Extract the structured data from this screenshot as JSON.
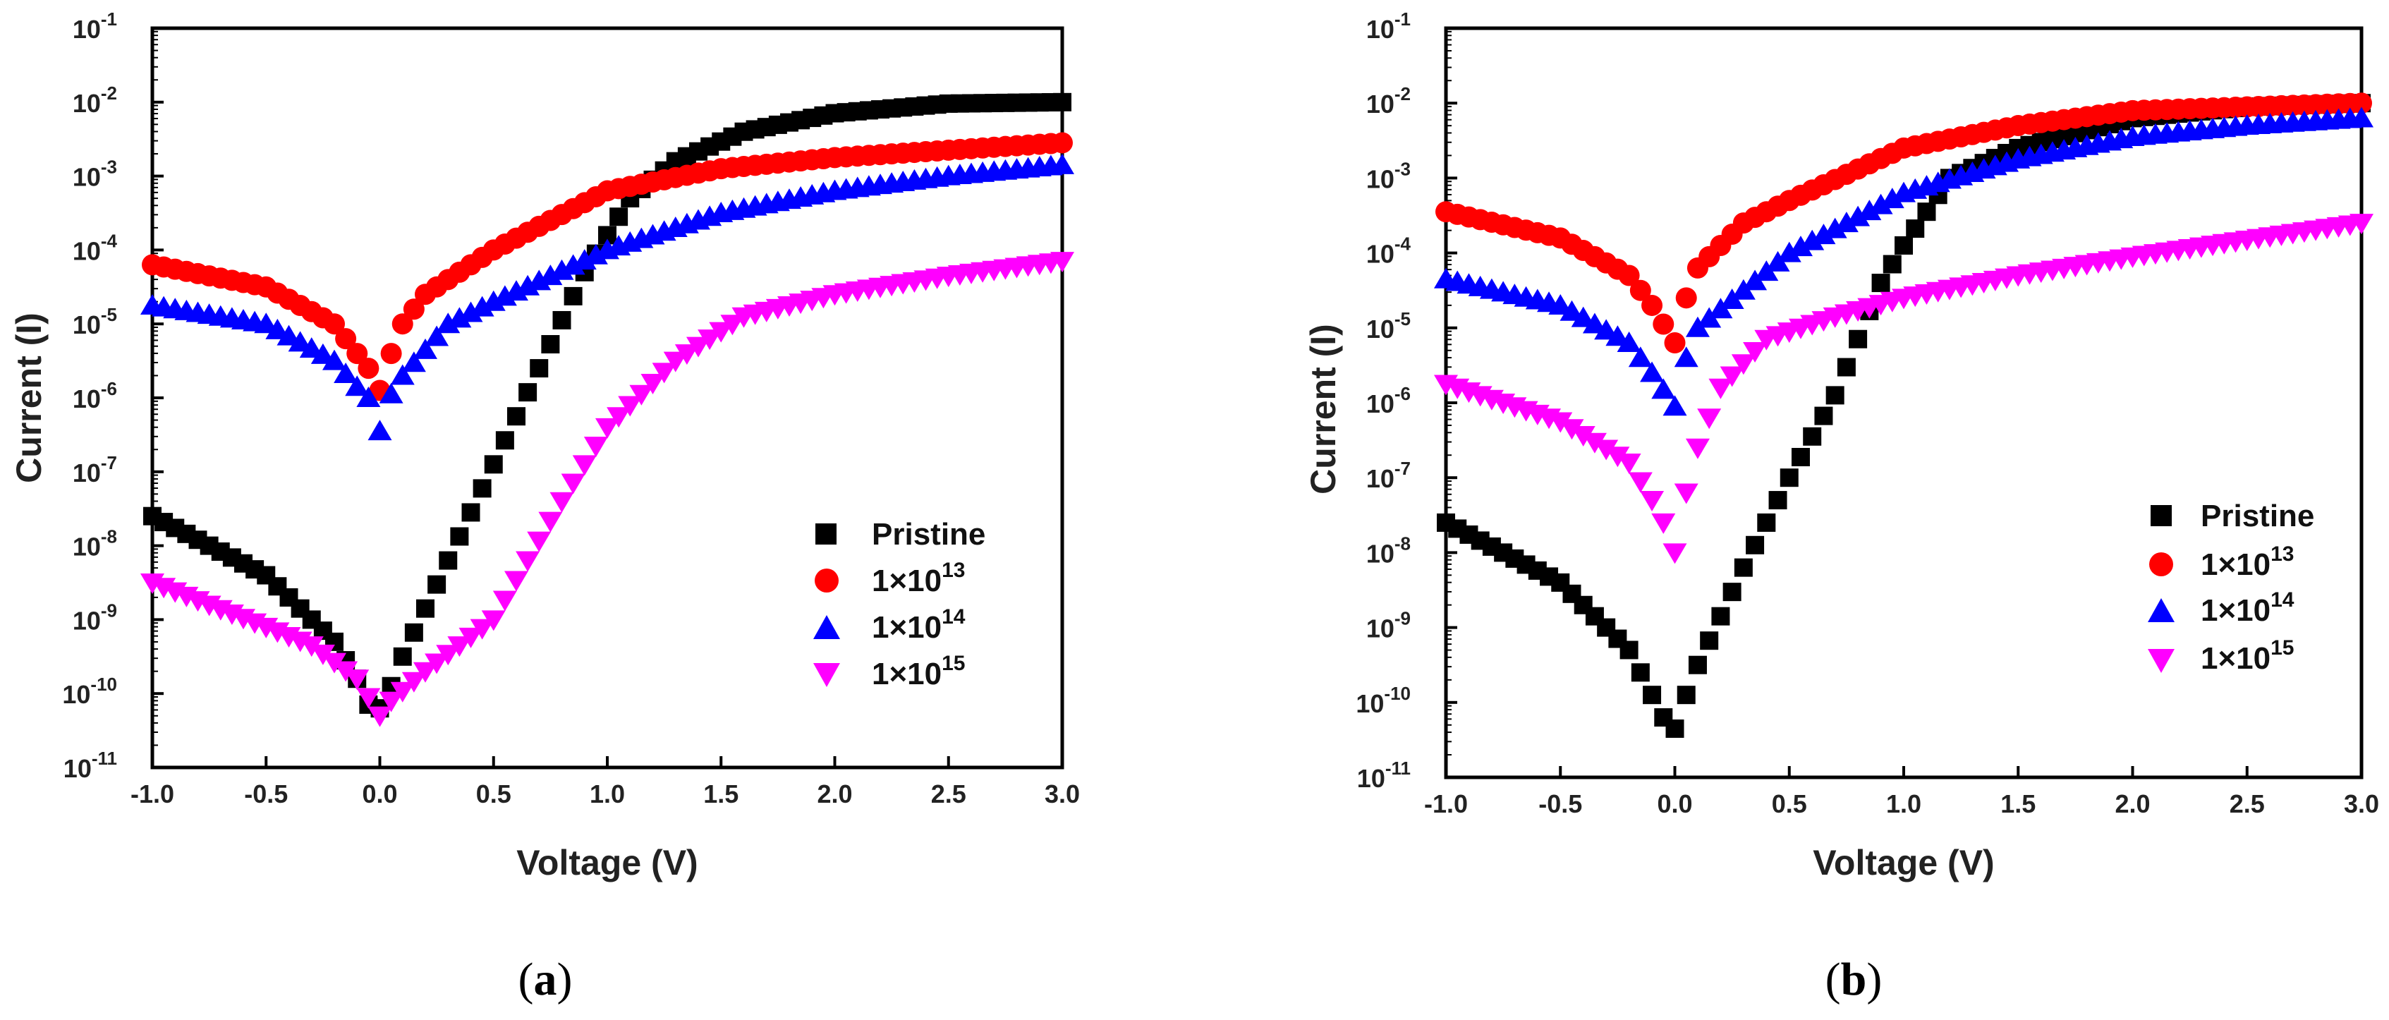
{
  "chart_data": [
    {
      "type": "scatter",
      "panel_label": "a",
      "xlabel": "Voltage (V)",
      "ylabel": "Current (I)",
      "xlim": [
        -1.0,
        3.0
      ],
      "ylim_log10": [
        -11,
        -1
      ],
      "yscale": "log",
      "x_ticks": [
        -1.0,
        -0.5,
        0.0,
        0.5,
        1.0,
        1.5,
        2.0,
        2.5,
        3.0
      ],
      "x_tick_labels": [
        "-1.0",
        "-0.5",
        "0.0",
        "0.5",
        "1.0",
        "1.5",
        "2.0",
        "2.5",
        "3.0"
      ],
      "y_tick_exponents": [
        -1,
        -2,
        -3,
        -4,
        -5,
        -6,
        -7,
        -8,
        -9,
        -10,
        -11
      ],
      "y_tick_base": "10",
      "legend_position": "lower-right",
      "series": [
        {
          "name": "Pristine",
          "marker": "square",
          "color": "#000000",
          "points": [
            [
              -1.0,
              -7.6
            ],
            [
              -0.5,
              -8.4
            ],
            [
              -0.2,
              -9.3
            ],
            [
              -0.1,
              -9.8
            ],
            [
              -0.05,
              -10.15
            ],
            [
              0.0,
              -10.2
            ],
            [
              0.05,
              -9.9
            ],
            [
              0.1,
              -9.5
            ],
            [
              0.3,
              -8.2
            ],
            [
              0.5,
              -6.9
            ],
            [
              0.7,
              -5.6
            ],
            [
              0.9,
              -4.3
            ],
            [
              1.1,
              -3.3
            ],
            [
              1.3,
              -2.8
            ],
            [
              1.6,
              -2.4
            ],
            [
              2.0,
              -2.15
            ],
            [
              2.5,
              -2.02
            ],
            [
              3.0,
              -2.0
            ]
          ]
        },
        {
          "name": "1×10",
          "label_exponent": "13",
          "marker": "circle",
          "color": "#ff0000",
          "points": [
            [
              -1.0,
              -4.2
            ],
            [
              -0.5,
              -4.5
            ],
            [
              -0.2,
              -5.0
            ],
            [
              -0.1,
              -5.4
            ],
            [
              -0.05,
              -5.6
            ],
            [
              0.0,
              -5.9
            ],
            [
              0.05,
              -5.4
            ],
            [
              0.1,
              -5.0
            ],
            [
              0.2,
              -4.6
            ],
            [
              0.5,
              -4.0
            ],
            [
              1.0,
              -3.2
            ],
            [
              1.5,
              -2.9
            ],
            [
              2.0,
              -2.75
            ],
            [
              3.0,
              -2.55
            ]
          ]
        },
        {
          "name": "1×10",
          "label_exponent": "14",
          "marker": "triangle-up",
          "color": "#0000ff",
          "points": [
            [
              -1.0,
              -4.75
            ],
            [
              -0.5,
              -5.0
            ],
            [
              -0.2,
              -5.5
            ],
            [
              -0.1,
              -5.85
            ],
            [
              -0.05,
              -6.0
            ],
            [
              0.0,
              -6.45
            ],
            [
              0.05,
              -5.95
            ],
            [
              0.1,
              -5.7
            ],
            [
              0.3,
              -5.0
            ],
            [
              0.5,
              -4.7
            ],
            [
              1.0,
              -4.0
            ],
            [
              1.5,
              -3.5
            ],
            [
              2.0,
              -3.2
            ],
            [
              2.5,
              -3.0
            ],
            [
              3.0,
              -2.85
            ]
          ]
        },
        {
          "name": "1×10",
          "label_exponent": "15",
          "marker": "triangle-down",
          "color": "#ff00ff",
          "points": [
            [
              -1.0,
              -8.5
            ],
            [
              -0.5,
              -9.1
            ],
            [
              -0.3,
              -9.35
            ],
            [
              -0.1,
              -9.8
            ],
            [
              0.0,
              -10.3
            ],
            [
              0.05,
              -10.1
            ],
            [
              0.2,
              -9.7
            ],
            [
              0.5,
              -9.0
            ],
            [
              0.8,
              -7.4
            ],
            [
              1.0,
              -6.4
            ],
            [
              1.3,
              -5.5
            ],
            [
              1.6,
              -4.9
            ],
            [
              2.0,
              -4.6
            ],
            [
              2.5,
              -4.35
            ],
            [
              3.0,
              -4.15
            ]
          ]
        }
      ]
    },
    {
      "type": "scatter",
      "panel_label": "b",
      "xlabel": "Voltage (V)",
      "ylabel": "Current (I)",
      "xlim": [
        -1.0,
        3.0
      ],
      "ylim_log10": [
        -11,
        -1
      ],
      "yscale": "log",
      "x_ticks": [
        -1.0,
        -0.5,
        0.0,
        0.5,
        1.0,
        1.5,
        2.0,
        2.5,
        3.0
      ],
      "x_tick_labels": [
        "-1.0",
        "-0.5",
        "0.0",
        "0.5",
        "1.0",
        "1.5",
        "2.0",
        "2.5",
        "3.0"
      ],
      "y_tick_exponents": [
        -1,
        -2,
        -3,
        -4,
        -5,
        -6,
        -7,
        -8,
        -9,
        -10,
        -11
      ],
      "y_tick_base": "10",
      "legend_position": "lower-right",
      "series": [
        {
          "name": "Pristine",
          "marker": "square",
          "color": "#000000",
          "points": [
            [
              -1.0,
              -7.6
            ],
            [
              -0.5,
              -8.4
            ],
            [
              -0.2,
              -9.3
            ],
            [
              -0.1,
              -9.9
            ],
            [
              -0.05,
              -10.2
            ],
            [
              0.0,
              -10.35
            ],
            [
              0.05,
              -9.9
            ],
            [
              0.1,
              -9.5
            ],
            [
              0.3,
              -8.2
            ],
            [
              0.5,
              -7.0
            ],
            [
              0.7,
              -5.9
            ],
            [
              0.9,
              -4.4
            ],
            [
              1.0,
              -3.9
            ],
            [
              1.2,
              -3.0
            ],
            [
              1.5,
              -2.6
            ],
            [
              2.0,
              -2.2
            ],
            [
              2.5,
              -2.05
            ],
            [
              3.0,
              -2.0
            ]
          ]
        },
        {
          "name": "1×10",
          "label_exponent": "13",
          "marker": "circle",
          "color": "#ff0000",
          "points": [
            [
              -1.0,
              -3.45
            ],
            [
              -0.5,
              -3.8
            ],
            [
              -0.2,
              -4.3
            ],
            [
              -0.1,
              -4.7
            ],
            [
              0.0,
              -5.2
            ],
            [
              0.05,
              -4.6
            ],
            [
              0.1,
              -4.2
            ],
            [
              0.3,
              -3.6
            ],
            [
              0.5,
              -3.3
            ],
            [
              1.0,
              -2.6
            ],
            [
              1.5,
              -2.3
            ],
            [
              2.0,
              -2.1
            ],
            [
              3.0,
              -2.0
            ]
          ]
        },
        {
          "name": "1×10",
          "label_exponent": "14",
          "marker": "triangle-up",
          "color": "#0000ff",
          "points": [
            [
              -1.0,
              -4.35
            ],
            [
              -0.5,
              -4.7
            ],
            [
              -0.2,
              -5.2
            ],
            [
              -0.1,
              -5.6
            ],
            [
              0.0,
              -6.05
            ],
            [
              0.05,
              -5.4
            ],
            [
              0.1,
              -5.0
            ],
            [
              0.3,
              -4.5
            ],
            [
              0.5,
              -4.0
            ],
            [
              1.0,
              -3.2
            ],
            [
              1.5,
              -2.75
            ],
            [
              2.0,
              -2.45
            ],
            [
              2.5,
              -2.3
            ],
            [
              3.0,
              -2.2
            ]
          ]
        },
        {
          "name": "1×10",
          "label_exponent": "15",
          "marker": "triangle-down",
          "color": "#ff00ff",
          "points": [
            [
              -1.0,
              -5.75
            ],
            [
              -0.5,
              -6.25
            ],
            [
              -0.2,
              -6.8
            ],
            [
              -0.1,
              -7.3
            ],
            [
              -0.05,
              -7.6
            ],
            [
              0.0,
              -8.0
            ],
            [
              0.05,
              -7.2
            ],
            [
              0.1,
              -6.6
            ],
            [
              0.2,
              -5.8
            ],
            [
              0.4,
              -5.15
            ],
            [
              0.7,
              -4.85
            ],
            [
              1.0,
              -4.6
            ],
            [
              1.5,
              -4.3
            ],
            [
              2.0,
              -4.05
            ],
            [
              3.0,
              -3.6
            ]
          ]
        }
      ]
    }
  ]
}
